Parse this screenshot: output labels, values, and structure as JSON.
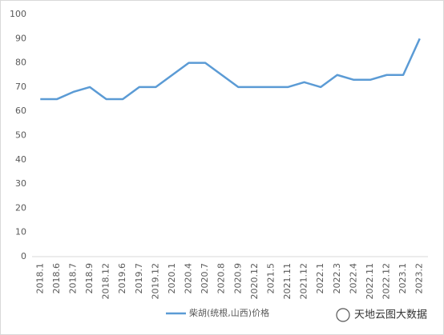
{
  "chart_data": {
    "type": "line",
    "categories": [
      "2018.1",
      "2018.6",
      "2018.7",
      "2018.9",
      "2018.12",
      "2019.6",
      "2019.7",
      "2019.12",
      "2020.1",
      "2020.4",
      "2020.7",
      "2020.8",
      "2020.9",
      "2020.12",
      "2021.5",
      "2021.11",
      "2021.12",
      "2022.1",
      "2022.3",
      "2022.4",
      "2022.11",
      "2022.12",
      "2023.1",
      "2023.2"
    ],
    "series": [
      {
        "name": "柴胡(统根,山西)价格",
        "color": "#5b9bd5",
        "values": [
          65,
          65,
          68,
          70,
          65,
          65,
          70,
          70,
          75,
          80,
          80,
          75,
          70,
          70,
          70,
          70,
          72,
          70,
          75,
          73,
          73,
          75,
          75,
          90
        ]
      }
    ],
    "ylim": [
      0,
      100
    ],
    "yticks": [
      0,
      10,
      20,
      30,
      40,
      50,
      60,
      70,
      80,
      90,
      100
    ],
    "grid": false,
    "legend": "bottom"
  },
  "watermark": "天地云图大数据"
}
